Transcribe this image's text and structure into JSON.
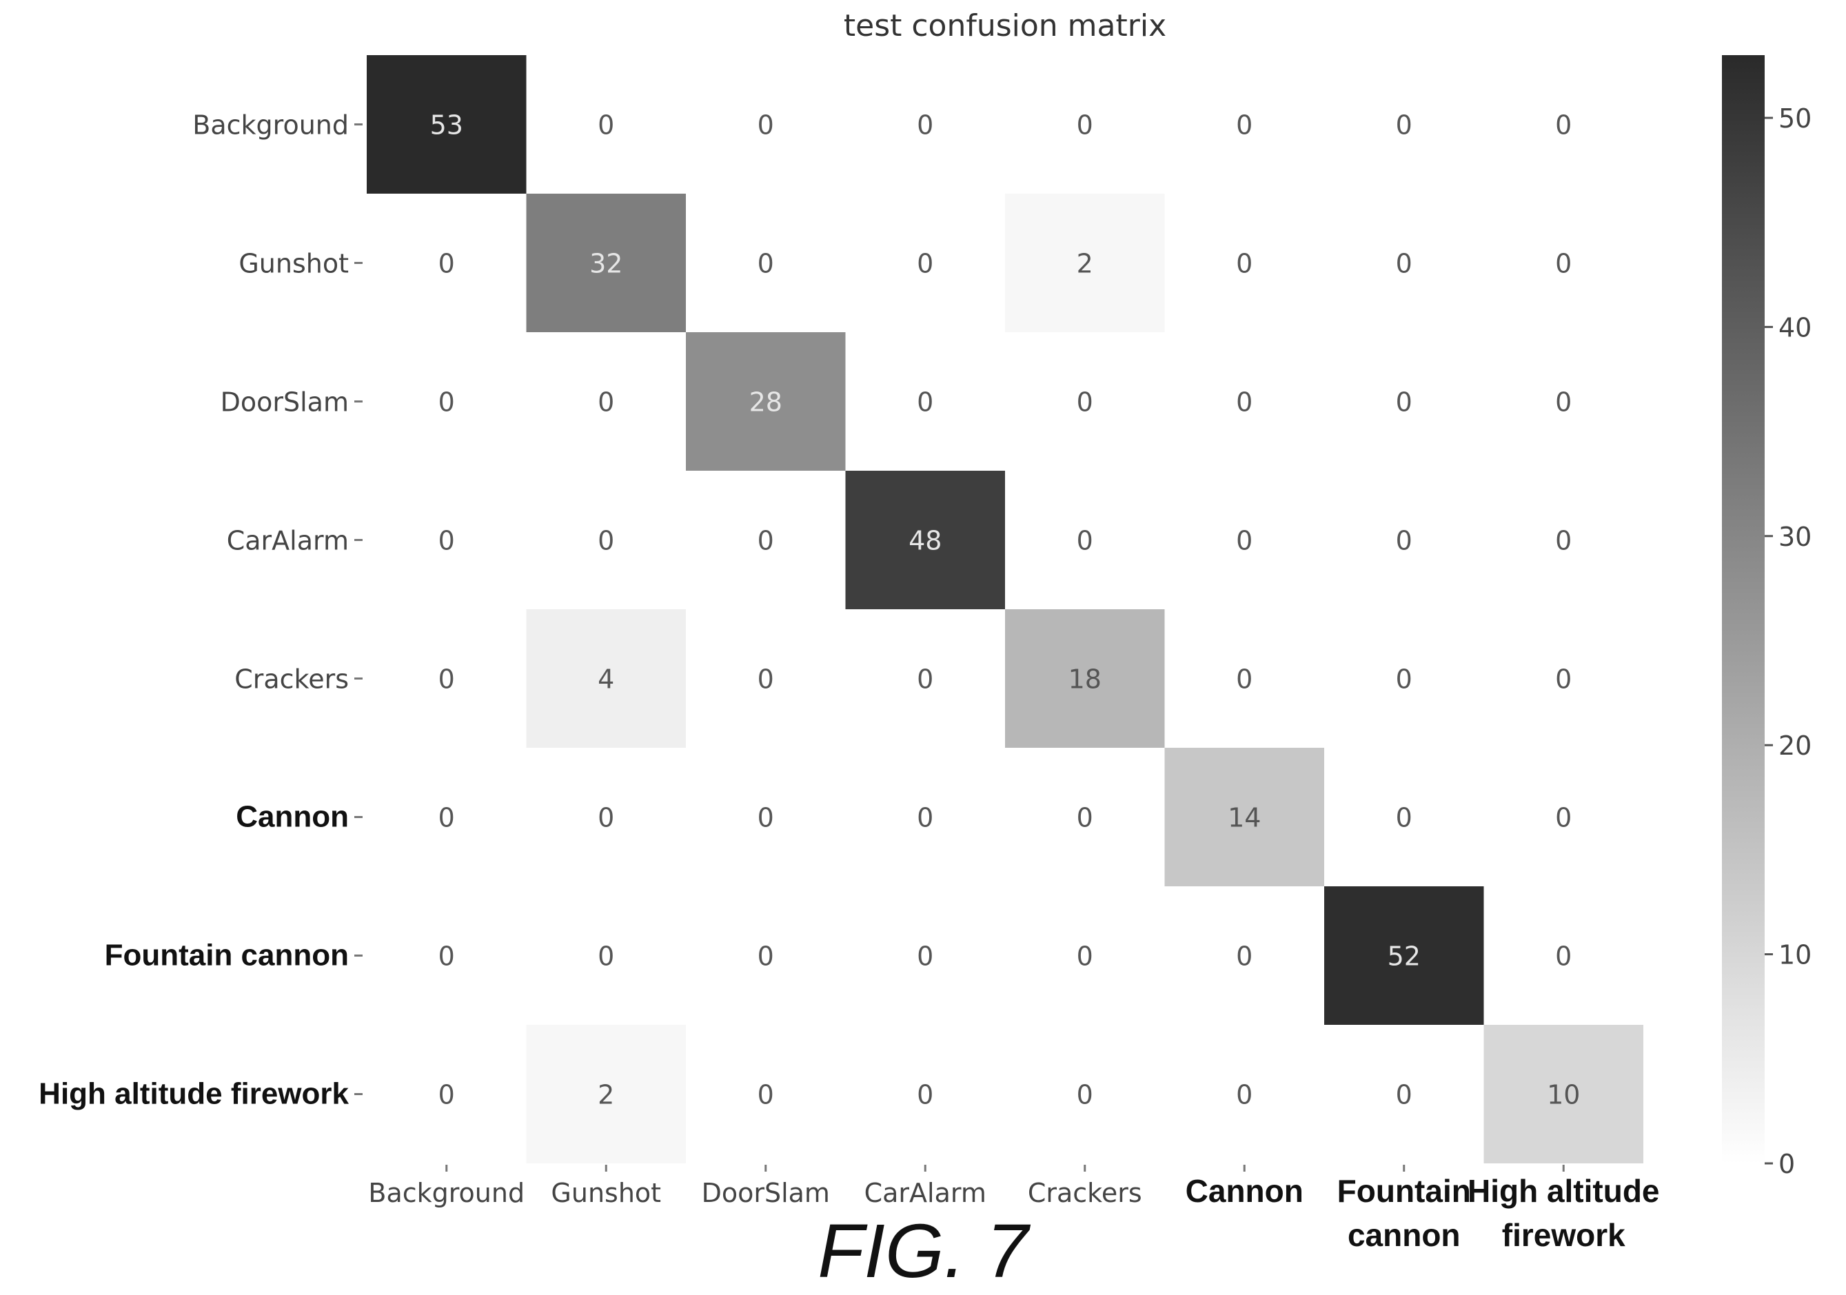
{
  "chart_data": {
    "type": "heatmap",
    "title": "test confusion matrix",
    "row_labels": [
      "Background",
      "Gunshot",
      "DoorSlam",
      "CarAlarm",
      "Crackers",
      "Cannon",
      "Fountain cannon",
      "High altitude firework"
    ],
    "col_labels": [
      [
        "Background"
      ],
      [
        "Gunshot"
      ],
      [
        "DoorSlam"
      ],
      [
        "CarAlarm"
      ],
      [
        "Crackers"
      ],
      [
        "Cannon"
      ],
      [
        "Fountain",
        "cannon"
      ],
      [
        "High altitude",
        "firework"
      ]
    ],
    "bold_labels": [
      "Cannon",
      "Fountain cannon",
      "High altitude firework"
    ],
    "values": [
      [
        53,
        0,
        0,
        0,
        0,
        0,
        0,
        0
      ],
      [
        0,
        32,
        0,
        0,
        2,
        0,
        0,
        0
      ],
      [
        0,
        0,
        28,
        0,
        0,
        0,
        0,
        0
      ],
      [
        0,
        0,
        0,
        48,
        0,
        0,
        0,
        0
      ],
      [
        0,
        4,
        0,
        0,
        18,
        0,
        0,
        0
      ],
      [
        0,
        0,
        0,
        0,
        0,
        14,
        0,
        0
      ],
      [
        0,
        0,
        0,
        0,
        0,
        0,
        52,
        0
      ],
      [
        0,
        2,
        0,
        0,
        0,
        0,
        0,
        10
      ]
    ],
    "colorbar": {
      "min": 0,
      "max": 53,
      "ticks": [
        0,
        10,
        20,
        30,
        40,
        50
      ],
      "colormap": "greys"
    }
  },
  "caption": "FIG. 7"
}
